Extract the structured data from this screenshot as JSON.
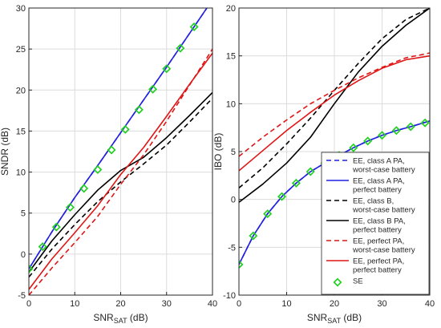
{
  "chart_data": [
    {
      "type": "line",
      "title": "",
      "xlabel": "SNR",
      "xlabel_sub": "SAT",
      "xlabel_unit": " (dB)",
      "ylabel": "SNDR (dB)",
      "xlim": [
        0,
        40
      ],
      "ylim": [
        -5,
        30
      ],
      "xticks": [
        0,
        10,
        20,
        30,
        40
      ],
      "yticks": [
        -5,
        0,
        5,
        10,
        15,
        20,
        25,
        30
      ],
      "grid": true,
      "series": [
        {
          "id": "a_worst",
          "color": "#1f1fe0",
          "dash": true,
          "x": [
            0,
            5,
            10,
            15,
            20,
            25,
            30,
            35,
            40
          ],
          "y": [
            -1.8,
            2.7,
            6.9,
            10.8,
            14.8,
            18.8,
            22.8,
            26.9,
            31.0
          ]
        },
        {
          "id": "a_perfect",
          "color": "#1f1fe0",
          "dash": false,
          "x": [
            0,
            5,
            10,
            15,
            20,
            25,
            30,
            35,
            40
          ],
          "y": [
            -1.8,
            2.7,
            6.9,
            10.8,
            14.8,
            18.8,
            22.8,
            26.9,
            31.0
          ]
        },
        {
          "id": "b_worst",
          "color": "#000000",
          "dash": true,
          "x": [
            0,
            5,
            10,
            15,
            20,
            25,
            30,
            35,
            40
          ],
          "y": [
            -2.8,
            0.6,
            3.6,
            6.4,
            8.8,
            11.0,
            13.3,
            16.1,
            19.0
          ]
        },
        {
          "id": "b_perfect",
          "color": "#000000",
          "dash": false,
          "x": [
            0,
            5,
            10,
            15,
            20,
            25,
            30,
            35,
            40
          ],
          "y": [
            -2.2,
            1.6,
            4.8,
            7.8,
            10.2,
            11.8,
            14.2,
            16.9,
            19.7
          ]
        },
        {
          "id": "p_worst",
          "color": "#e01515",
          "dash": true,
          "x": [
            0,
            5,
            10,
            15,
            20,
            25,
            30,
            35,
            40
          ],
          "y": [
            -5.0,
            -1.7,
            1.4,
            4.6,
            8.5,
            12.1,
            16.2,
            20.6,
            25.0
          ]
        },
        {
          "id": "p_perfect",
          "color": "#e01515",
          "dash": false,
          "x": [
            0,
            5,
            10,
            15,
            20,
            25,
            30,
            35,
            40
          ],
          "y": [
            -4.3,
            -0.6,
            2.6,
            5.9,
            9.7,
            13.0,
            16.8,
            20.7,
            24.5
          ]
        },
        {
          "id": "se",
          "color": "#22d022",
          "marker": "diamond",
          "x": [
            0,
            3,
            6,
            9,
            12,
            15,
            18,
            21,
            24,
            27,
            30,
            33,
            36
          ],
          "y": [
            -1.8,
            0.9,
            3.3,
            5.7,
            8.0,
            10.3,
            12.7,
            15.2,
            17.6,
            20.1,
            22.6,
            25.1,
            27.7
          ]
        }
      ]
    },
    {
      "type": "line",
      "title": "",
      "xlabel": "SNR",
      "xlabel_sub": "SAT",
      "xlabel_unit": " (dB)",
      "ylabel": "IBO (dB)",
      "xlim": [
        0,
        40
      ],
      "ylim": [
        -10,
        20
      ],
      "xticks": [
        0,
        10,
        20,
        30,
        40
      ],
      "yticks": [
        -10,
        -5,
        0,
        5,
        10,
        15,
        20
      ],
      "grid": true,
      "series": [
        {
          "id": "a_worst",
          "color": "#1f1fe0",
          "dash": true,
          "x": [
            0,
            3,
            6,
            9,
            12,
            15,
            18,
            21,
            24,
            27,
            30,
            33,
            36,
            40
          ],
          "y": [
            -6.8,
            -3.8,
            -1.5,
            0.3,
            1.7,
            2.9,
            3.8,
            4.6,
            5.4,
            6.1,
            6.7,
            7.2,
            7.6,
            8.2
          ]
        },
        {
          "id": "a_perfect",
          "color": "#1f1fe0",
          "dash": false,
          "x": [
            0,
            3,
            6,
            9,
            12,
            15,
            18,
            21,
            24,
            27,
            30,
            33,
            36,
            40
          ],
          "y": [
            -6.8,
            -3.8,
            -1.5,
            0.3,
            1.7,
            2.9,
            3.8,
            4.6,
            5.4,
            6.1,
            6.7,
            7.2,
            7.6,
            8.2
          ]
        },
        {
          "id": "b_worst",
          "color": "#000000",
          "dash": true,
          "x": [
            0,
            5,
            10,
            15,
            20,
            25,
            30,
            35,
            40
          ],
          "y": [
            1.2,
            3.3,
            5.8,
            8.5,
            11.4,
            14.2,
            16.8,
            18.8,
            20.0
          ]
        },
        {
          "id": "b_perfect",
          "color": "#000000",
          "dash": false,
          "x": [
            0,
            5,
            10,
            15,
            20,
            25,
            30,
            35,
            40
          ],
          "y": [
            -0.3,
            1.6,
            3.8,
            6.5,
            10.0,
            13.3,
            16.0,
            18.2,
            20.0
          ]
        },
        {
          "id": "p_worst",
          "color": "#e01515",
          "dash": true,
          "x": [
            0,
            5,
            10,
            15,
            20,
            25,
            30,
            35,
            40
          ],
          "y": [
            4.5,
            6.5,
            8.3,
            10.0,
            11.4,
            12.7,
            13.8,
            14.8,
            15.3
          ]
        },
        {
          "id": "p_perfect",
          "color": "#e01515",
          "dash": false,
          "x": [
            0,
            5,
            10,
            15,
            20,
            25,
            30,
            35,
            40
          ],
          "y": [
            3.0,
            5.1,
            7.2,
            9.1,
            10.9,
            12.4,
            13.7,
            14.6,
            15.0
          ]
        },
        {
          "id": "se",
          "color": "#22d022",
          "marker": "diamond",
          "x": [
            0,
            3,
            6,
            9,
            12,
            15,
            18,
            21,
            24,
            27,
            30,
            33,
            36,
            39
          ],
          "y": [
            -6.8,
            -3.8,
            -1.5,
            0.3,
            1.7,
            2.9,
            3.8,
            4.6,
            5.4,
            6.1,
            6.7,
            7.2,
            7.6,
            8.0
          ]
        }
      ],
      "legend": {
        "placement": "lower-right",
        "entries": [
          {
            "id": "a_worst",
            "lines": [
              "EE, class A PA,",
              "worst-case battery"
            ]
          },
          {
            "id": "a_perfect",
            "lines": [
              "EE, class A PA,",
              "perfect battery"
            ]
          },
          {
            "id": "b_worst",
            "lines": [
              "EE, class B,",
              "worst-case battery"
            ]
          },
          {
            "id": "b_perfect",
            "lines": [
              "EE, class B PA,",
              "perfect battery"
            ]
          },
          {
            "id": "p_worst",
            "lines": [
              "EE, perfect PA,",
              "worst-case battery"
            ]
          },
          {
            "id": "p_perfect",
            "lines": [
              "EE, perfect PA,",
              "perfect battery"
            ]
          },
          {
            "id": "se",
            "lines": [
              "SE"
            ]
          }
        ]
      }
    }
  ]
}
